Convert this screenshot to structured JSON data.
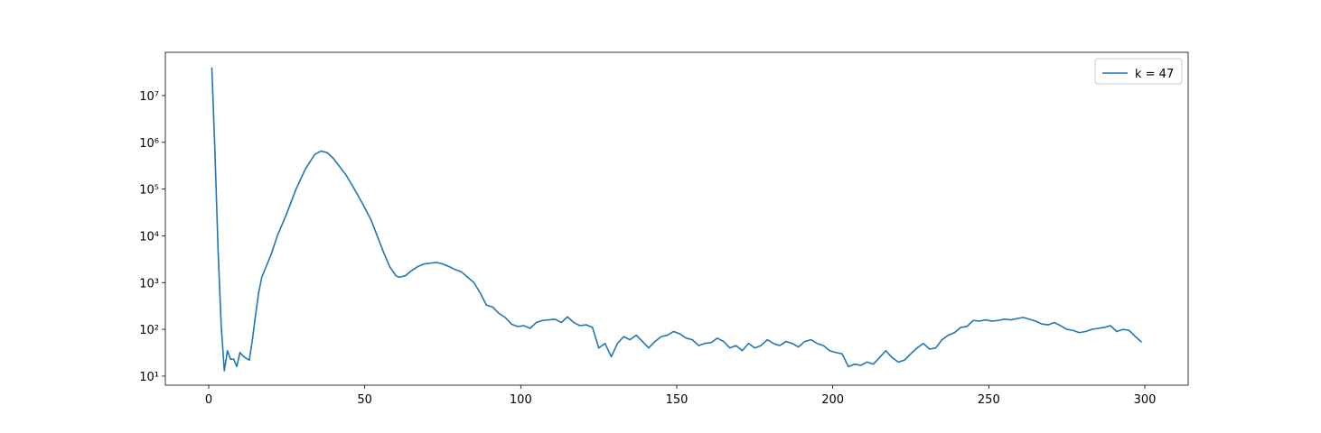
{
  "chart_data": {
    "type": "line",
    "yscale": "log",
    "legend_loc": "upper right",
    "x": [
      1,
      2,
      3,
      4,
      5,
      6,
      7,
      8,
      9,
      10,
      11,
      12,
      13,
      14,
      15,
      16,
      17,
      20,
      22,
      25,
      28,
      31,
      34,
      36,
      38,
      40,
      42,
      44,
      46,
      48,
      50,
      52,
      54,
      56,
      58,
      60,
      61,
      63,
      65,
      67,
      69,
      71,
      73,
      75,
      77,
      79,
      81,
      83,
      85,
      87,
      89,
      91,
      93,
      95,
      97,
      99,
      101,
      103,
      105,
      107,
      109,
      111,
      113,
      115,
      117,
      119,
      121,
      123,
      125,
      127,
      129,
      131,
      133,
      135,
      137,
      139,
      141,
      143,
      145,
      147,
      149,
      151,
      153,
      155,
      157,
      159,
      161,
      163,
      165,
      167,
      169,
      171,
      173,
      175,
      177,
      179,
      181,
      183,
      185,
      187,
      189,
      191,
      193,
      195,
      197,
      199,
      201,
      203,
      205,
      207,
      209,
      211,
      213,
      215,
      217,
      219,
      221,
      223,
      225,
      227,
      229,
      231,
      233,
      235,
      237,
      239,
      241,
      243,
      245,
      247,
      249,
      251,
      253,
      255,
      257,
      259,
      261,
      263,
      265,
      267,
      269,
      271,
      273,
      275,
      277,
      279,
      281,
      283,
      285,
      287,
      289,
      291,
      293,
      295,
      297,
      299
    ],
    "series": [
      {
        "name": "k = 47",
        "color": "#1f77b4",
        "values": [
          40000000,
          600000,
          5000,
          120,
          13,
          35,
          23,
          23,
          16,
          32,
          27,
          24,
          22,
          60,
          200,
          600,
          1300,
          4000,
          10000,
          30000,
          100000,
          270000,
          550000,
          650000,
          600000,
          450000,
          300000,
          200000,
          120000,
          70000,
          40000,
          22000,
          10000,
          4500,
          2200,
          1400,
          1300,
          1400,
          1800,
          2200,
          2500,
          2600,
          2700,
          2500,
          2200,
          1900,
          1700,
          1300,
          1000,
          600,
          330,
          300,
          220,
          180,
          130,
          115,
          120,
          105,
          140,
          155,
          160,
          165,
          140,
          185,
          140,
          120,
          125,
          110,
          40,
          50,
          26,
          50,
          70,
          60,
          75,
          55,
          40,
          55,
          70,
          75,
          90,
          80,
          65,
          60,
          45,
          50,
          52,
          65,
          55,
          40,
          45,
          35,
          50,
          40,
          45,
          60,
          50,
          45,
          55,
          50,
          42,
          55,
          60,
          50,
          45,
          35,
          32,
          30,
          16,
          18,
          17,
          20,
          18,
          25,
          35,
          25,
          20,
          22,
          30,
          40,
          50,
          38,
          40,
          60,
          75,
          85,
          110,
          115,
          155,
          150,
          160,
          150,
          155,
          165,
          160,
          170,
          180,
          165,
          150,
          130,
          125,
          140,
          120,
          100,
          95,
          85,
          90,
          100,
          105,
          110,
          120,
          90,
          100,
          95,
          70,
          53
        ]
      }
    ],
    "xlim": [
      -13.9,
      313.9
    ],
    "xticks": [
      0,
      50,
      100,
      150,
      200,
      250,
      300
    ],
    "ylim": [
      6.4,
      84000000
    ],
    "yticks": [
      {
        "value": 10,
        "label": "10¹"
      },
      {
        "value": 100,
        "label": "10²"
      },
      {
        "value": 1000,
        "label": "10³"
      },
      {
        "value": 10000,
        "label": "10⁴"
      },
      {
        "value": 100000,
        "label": "10⁵"
      },
      {
        "value": 1000000,
        "label": "10⁶"
      },
      {
        "value": 10000000,
        "label": "10⁷"
      }
    ]
  }
}
